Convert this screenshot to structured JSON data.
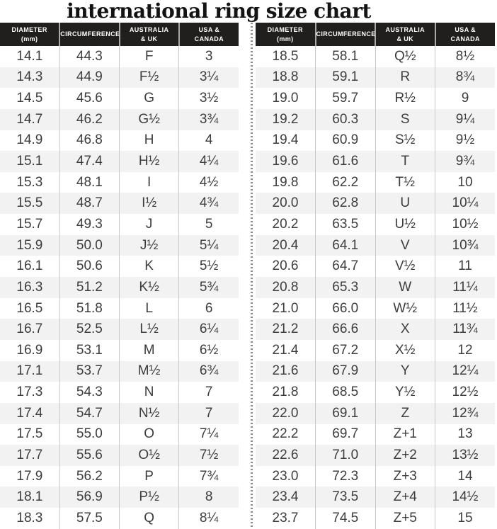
{
  "chart_data": {
    "type": "table",
    "title": "international ring size chart",
    "columns": [
      "DIAMETER\n(mm)",
      "CIRCUMFERENCE",
      "AUSTRALIA\n& UK",
      "USA &\nCANADA"
    ],
    "tables": [
      {
        "name": "left",
        "rows": [
          [
            "14.1",
            "44.3",
            "F",
            "3"
          ],
          [
            "14.3",
            "44.9",
            "F½",
            "3¼"
          ],
          [
            "14.5",
            "45.6",
            "G",
            "3½"
          ],
          [
            "14.7",
            "46.2",
            "G½",
            "3¾"
          ],
          [
            "14.9",
            "46.8",
            "H",
            "4"
          ],
          [
            "15.1",
            "47.4",
            "H½",
            "4¼"
          ],
          [
            "15.3",
            "48.1",
            "I",
            "4½"
          ],
          [
            "15.5",
            "48.7",
            "I½",
            "4¾"
          ],
          [
            "15.7",
            "49.3",
            "J",
            "5"
          ],
          [
            "15.9",
            "50.0",
            "J½",
            "5¼"
          ],
          [
            "16.1",
            "50.6",
            "K",
            "5½"
          ],
          [
            "16.3",
            "51.2",
            "K½",
            "5¾"
          ],
          [
            "16.5",
            "51.8",
            "L",
            "6"
          ],
          [
            "16.7",
            "52.5",
            "L½",
            "6¼"
          ],
          [
            "16.9",
            "53.1",
            "M",
            "6½"
          ],
          [
            "17.1",
            "53.7",
            "M½",
            "6¾"
          ],
          [
            "17.3",
            "54.3",
            "N",
            "7"
          ],
          [
            "17.4",
            "54.7",
            "N½",
            "7"
          ],
          [
            "17.5",
            "55.0",
            "O",
            "7¼"
          ],
          [
            "17.7",
            "55.6",
            "O½",
            "7½"
          ],
          [
            "17.9",
            "56.2",
            "P",
            "7¾"
          ],
          [
            "18.1",
            "56.9",
            "P½",
            "8"
          ],
          [
            "18.3",
            "57.5",
            "Q",
            "8¼"
          ]
        ]
      },
      {
        "name": "right",
        "rows": [
          [
            "18.5",
            "58.1",
            "Q½",
            "8½"
          ],
          [
            "18.8",
            "59.1",
            "R",
            "8¾"
          ],
          [
            "19.0",
            "59.7",
            "R½",
            "9"
          ],
          [
            "19.2",
            "60.3",
            "S",
            "9¼"
          ],
          [
            "19.4",
            "60.9",
            "S½",
            "9½"
          ],
          [
            "19.6",
            "61.6",
            "T",
            "9¾"
          ],
          [
            "19.8",
            "62.2",
            "T½",
            "10"
          ],
          [
            "20.0",
            "62.8",
            "U",
            "10¼"
          ],
          [
            "20.2",
            "63.5",
            "U½",
            "10½"
          ],
          [
            "20.4",
            "64.1",
            "V",
            "10¾"
          ],
          [
            "20.6",
            "64.7",
            "V½",
            "11"
          ],
          [
            "20.8",
            "65.3",
            "W",
            "11¼"
          ],
          [
            "21.0",
            "66.0",
            "W½",
            "11½"
          ],
          [
            "21.2",
            "66.6",
            "X",
            "11¾"
          ],
          [
            "21.4",
            "67.2",
            "X½",
            "12"
          ],
          [
            "21.6",
            "67.9",
            "Y",
            "12¼"
          ],
          [
            "21.8",
            "68.5",
            "Y½",
            "12½"
          ],
          [
            "22.0",
            "69.1",
            "Z",
            "12¾"
          ],
          [
            "22.2",
            "69.7",
            "Z+1",
            "13"
          ],
          [
            "22.6",
            "71.0",
            "Z+2",
            "13½"
          ],
          [
            "23.0",
            "72.3",
            "Z+3",
            "14"
          ],
          [
            "23.4",
            "73.5",
            "Z+4",
            "14½"
          ],
          [
            "23.7",
            "74.5",
            "Z+5",
            "15"
          ]
        ]
      }
    ],
    "layout_hints": {
      "tables_side_by_side": true,
      "divider": "vertical dotted line between tables",
      "row_striping": "alternate rows shaded"
    }
  },
  "colors": {
    "header_bg": "#211e1e",
    "header_text": "#ffffff",
    "row_alt_bg": "#f2f2f2",
    "body_text": "#3d3d3d",
    "column_divider": "#c9c9c9",
    "dotted_divider": "#8c8c8c",
    "title_color": "#131313"
  }
}
